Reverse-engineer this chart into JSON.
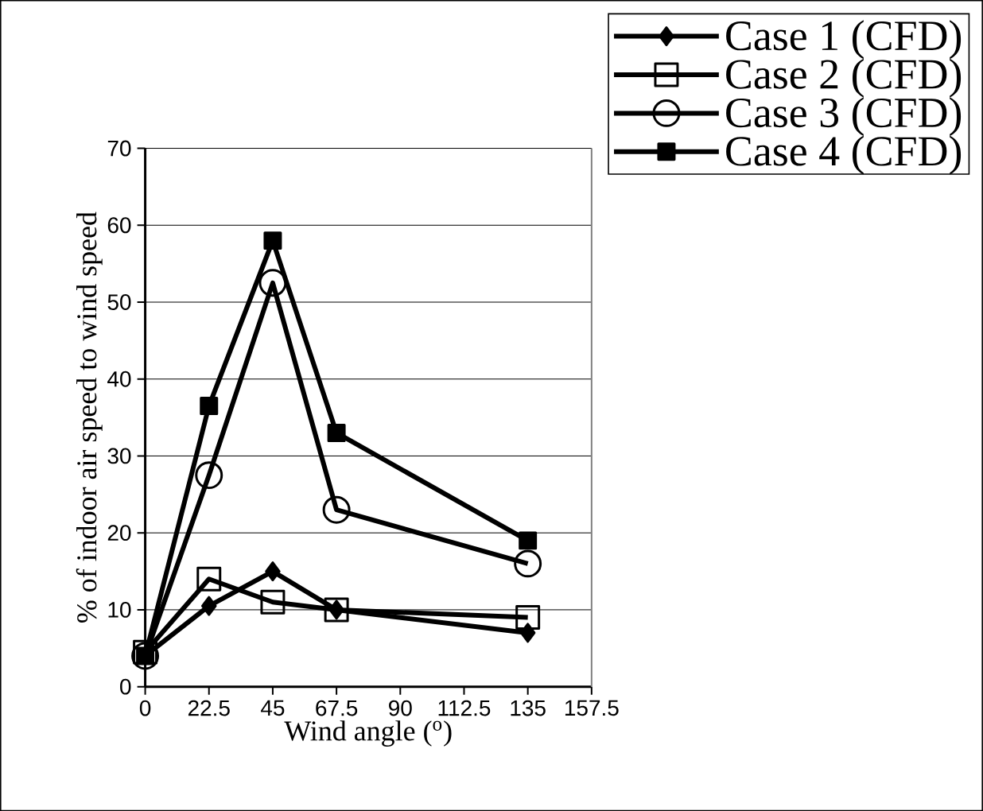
{
  "chart_data": {
    "type": "line",
    "xlabel": "Wind angle ($^{o}$)",
    "ylabel": "% of indoor air speed to wind speed",
    "x": [
      0,
      22.5,
      45,
      67.5,
      135
    ],
    "series": [
      {
        "name": "Case 1 (CFD)",
        "color": "#000000",
        "marker": "diamond",
        "values": [
          4,
          10.5,
          15,
          10,
          7
        ]
      },
      {
        "name": "Case 2 (CFD)",
        "color": "#000000",
        "marker": "square",
        "values": [
          4.5,
          14,
          11,
          10,
          9
        ]
      },
      {
        "name": "Case 3 (CFD)",
        "color": "#000000",
        "marker": "circle",
        "values": [
          4,
          27.5,
          52.5,
          23,
          16
        ]
      },
      {
        "name": "Case 4 (CFD)",
        "color": "#000000",
        "marker": "square",
        "values": [
          4,
          36.5,
          58,
          33,
          19
        ]
      }
    ],
    "xlim": [
      0,
      157.5
    ],
    "xticks": [
      0,
      22.5,
      45,
      67.5,
      90,
      112.5,
      135,
      157.5
    ],
    "ylim": [
      0,
      70
    ],
    "yticks": [
      0,
      10,
      20,
      30,
      40,
      50,
      60,
      70
    ],
    "grid": "y",
    "legend": "top right",
    "line_style": "solid"
  }
}
